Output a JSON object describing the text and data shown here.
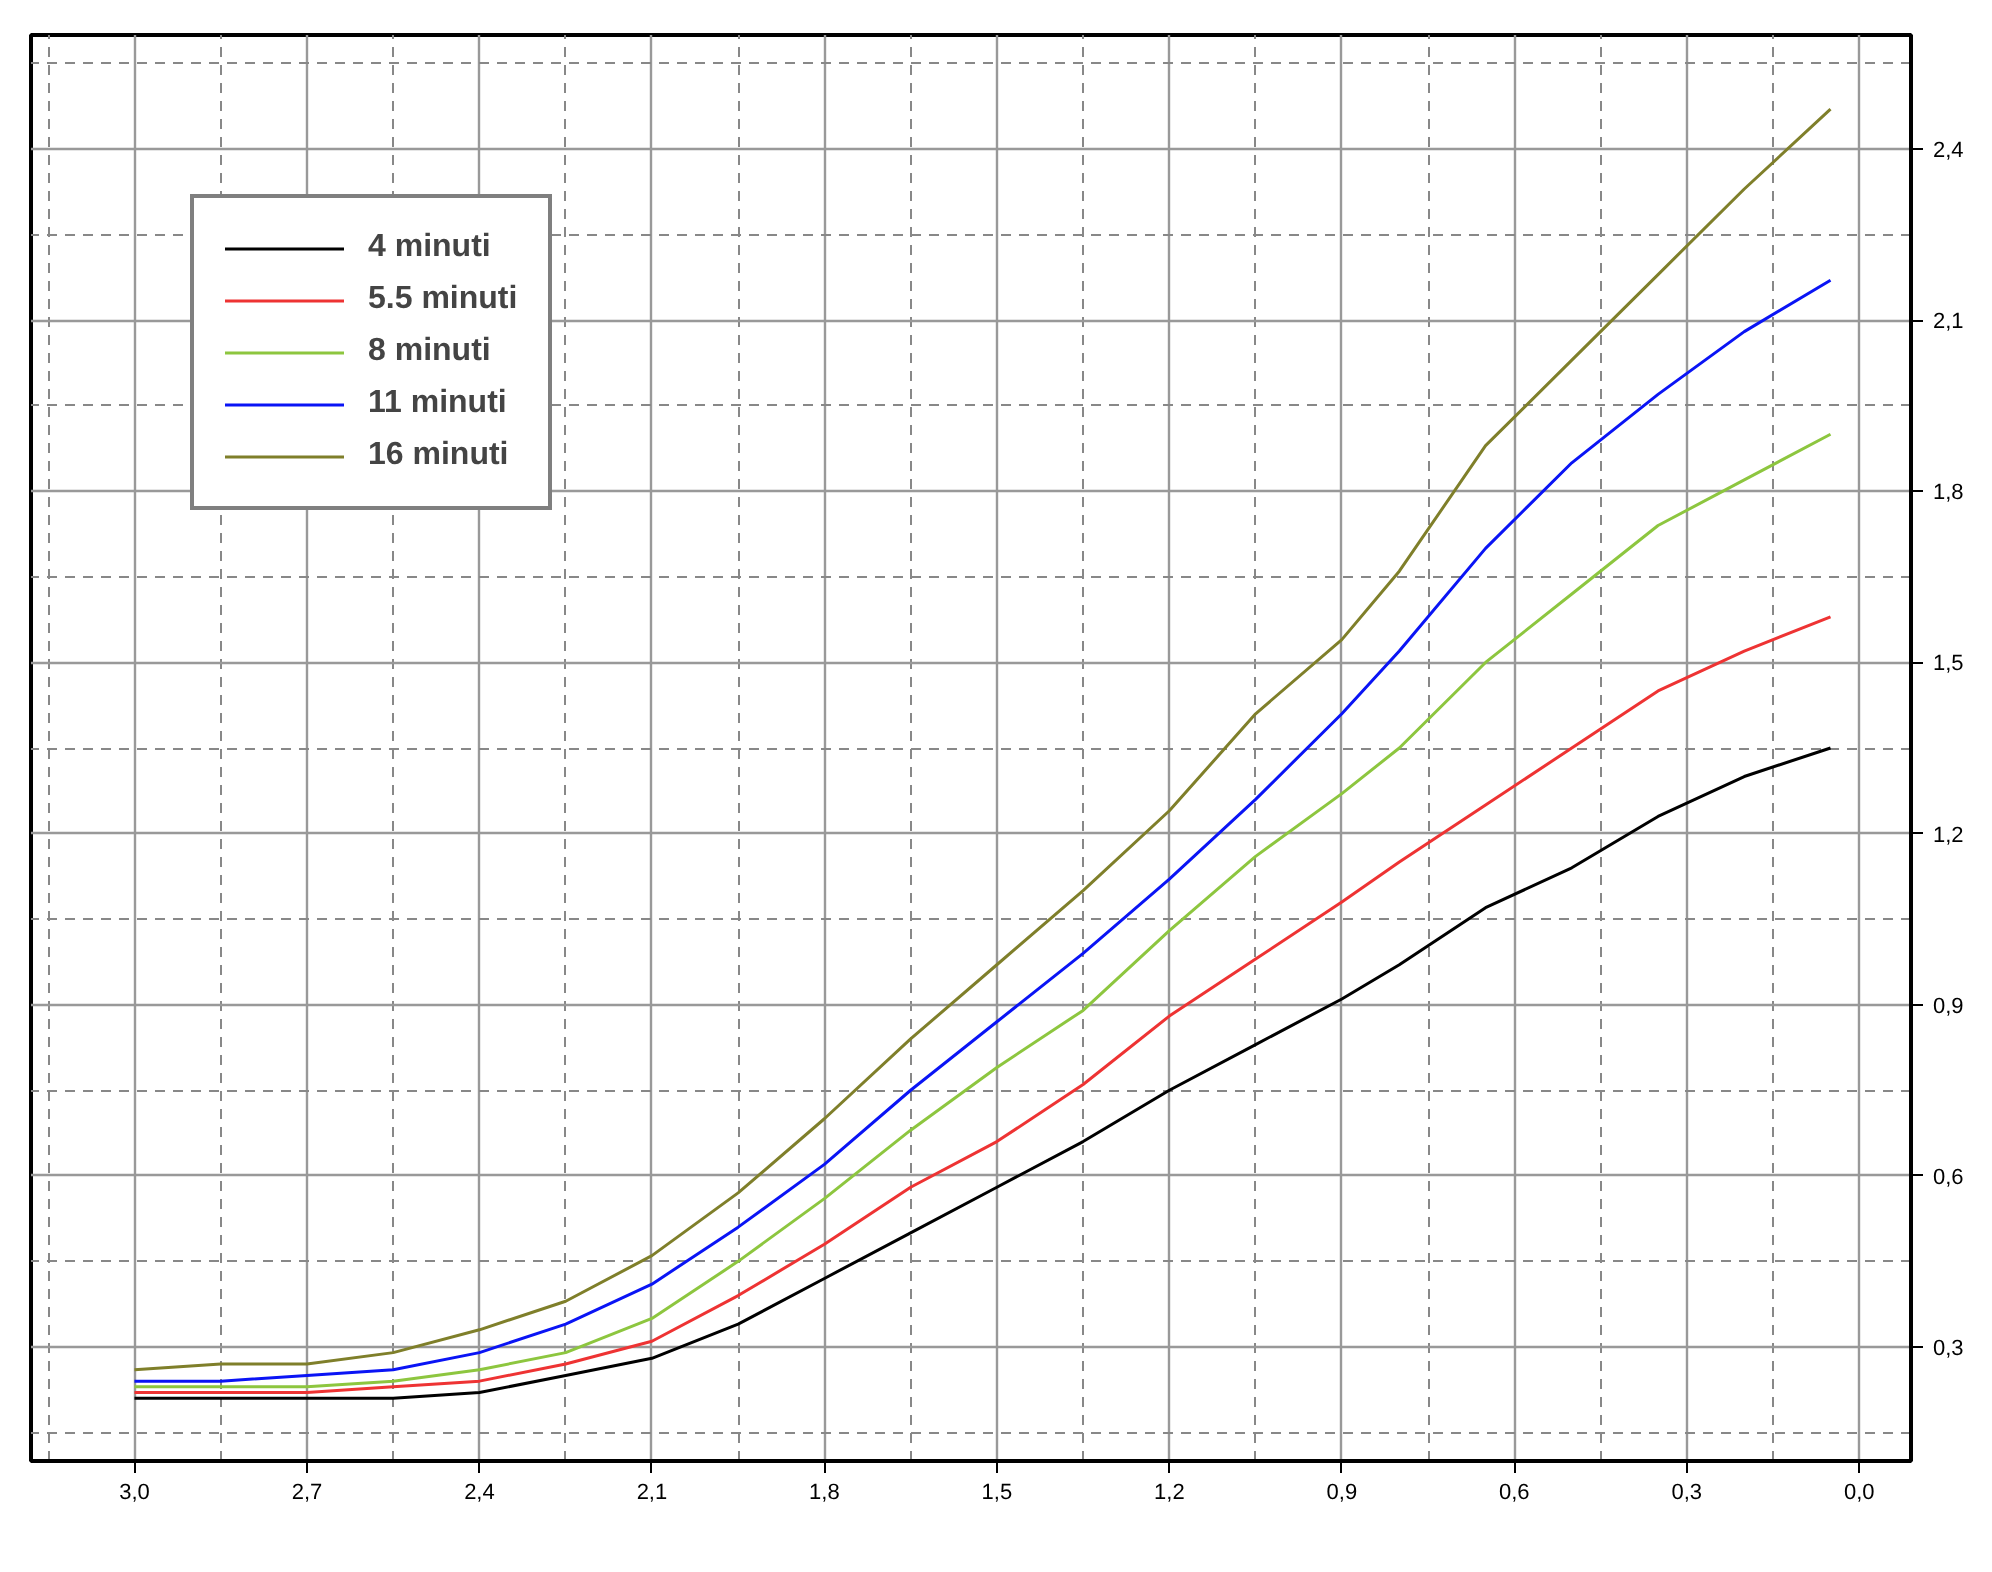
{
  "chart_data": {
    "type": "line",
    "x": [
      3.0,
      2.85,
      2.7,
      2.55,
      2.4,
      2.25,
      2.1,
      1.95,
      1.8,
      1.65,
      1.5,
      1.35,
      1.2,
      1.05,
      0.9,
      0.8,
      0.65,
      0.5,
      0.35,
      0.2,
      0.05
    ],
    "series": [
      {
        "name": "4 minuti",
        "color": "#000000",
        "values": [
          0.21,
          0.21,
          0.21,
          0.21,
          0.22,
          0.25,
          0.28,
          0.34,
          0.42,
          0.5,
          0.58,
          0.66,
          0.75,
          0.83,
          0.91,
          0.97,
          1.07,
          1.14,
          1.23,
          1.3,
          1.35
        ]
      },
      {
        "name": "5.5 minuti",
        "color": "#ee3333",
        "values": [
          0.22,
          0.22,
          0.22,
          0.23,
          0.24,
          0.27,
          0.31,
          0.39,
          0.48,
          0.58,
          0.66,
          0.76,
          0.88,
          0.98,
          1.08,
          1.15,
          1.25,
          1.35,
          1.45,
          1.52,
          1.58
        ]
      },
      {
        "name": "8 minuti",
        "color": "#8dc63f",
        "values": [
          0.23,
          0.23,
          0.23,
          0.24,
          0.26,
          0.29,
          0.35,
          0.45,
          0.56,
          0.68,
          0.79,
          0.89,
          1.03,
          1.16,
          1.27,
          1.35,
          1.5,
          1.62,
          1.74,
          1.82,
          1.9
        ]
      },
      {
        "name": "11 minuti",
        "color": "#0a14f5",
        "values": [
          0.24,
          0.24,
          0.25,
          0.26,
          0.29,
          0.34,
          0.41,
          0.51,
          0.62,
          0.75,
          0.87,
          0.99,
          1.12,
          1.26,
          1.41,
          1.52,
          1.7,
          1.85,
          1.97,
          2.08,
          2.17
        ]
      },
      {
        "name": "16 minuti",
        "color": "#7f7f2a",
        "values": [
          0.26,
          0.27,
          0.27,
          0.29,
          0.33,
          0.38,
          0.46,
          0.57,
          0.7,
          0.84,
          0.97,
          1.1,
          1.24,
          1.41,
          1.54,
          1.66,
          1.88,
          2.03,
          2.18,
          2.33,
          2.47
        ]
      }
    ],
    "xlim": [
      3.18,
      -0.09
    ],
    "ylim": [
      0.1,
      2.6
    ],
    "xticks": [
      {
        "value": 3.0,
        "label": "3,0"
      },
      {
        "value": 2.7,
        "label": "2,7"
      },
      {
        "value": 2.4,
        "label": "2,4"
      },
      {
        "value": 2.1,
        "label": "2,1"
      },
      {
        "value": 1.8,
        "label": "1,8"
      },
      {
        "value": 1.5,
        "label": "1,5"
      },
      {
        "value": 1.2,
        "label": "1,2"
      },
      {
        "value": 0.9,
        "label": "0,9"
      },
      {
        "value": 0.6,
        "label": "0,6"
      },
      {
        "value": 0.3,
        "label": "0,3"
      },
      {
        "value": 0.0,
        "label": "0,0"
      }
    ],
    "yticks": [
      {
        "value": 0.3,
        "label": "0,3"
      },
      {
        "value": 0.6,
        "label": "0,6"
      },
      {
        "value": 0.9,
        "label": "0,9"
      },
      {
        "value": 1.2,
        "label": "1,2"
      },
      {
        "value": 1.5,
        "label": "1,5"
      },
      {
        "value": 1.8,
        "label": "1,8"
      },
      {
        "value": 2.1,
        "label": "2,1"
      },
      {
        "value": 2.4,
        "label": "2,4"
      }
    ],
    "grid": true,
    "legend": "top left",
    "line_style": "solid"
  }
}
